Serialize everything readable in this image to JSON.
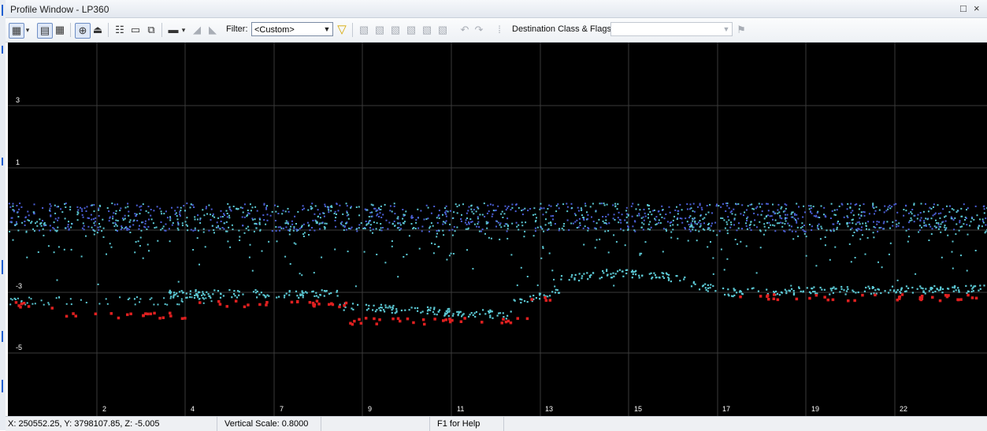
{
  "window": {
    "title": "Profile Window - LP360",
    "restore_symbol": "□",
    "close_symbol": "×"
  },
  "toolbar": {
    "filter_label": "Filter:",
    "filter_value": "<Custom>",
    "dest_label": "Destination Class & Flags:",
    "dest_value": ""
  },
  "plot": {
    "background": "#000000",
    "grid_color": "#3a3a3a",
    "y_labels": [
      "3",
      "1",
      "-3",
      "-5"
    ],
    "x_labels": [
      "2",
      "4",
      "7",
      "9",
      "11",
      "13",
      "15",
      "17",
      "19",
      "22"
    ],
    "point_colors": {
      "high": "#4b5fd6",
      "cyan": "#5bc7d3",
      "ground": "#e02020"
    }
  },
  "status": {
    "coords": "X: 250552.25, Y: 3798107.85, Z: -5.005",
    "vscale": "Vertical Scale: 0.8000",
    "help": "F1 for Help"
  }
}
